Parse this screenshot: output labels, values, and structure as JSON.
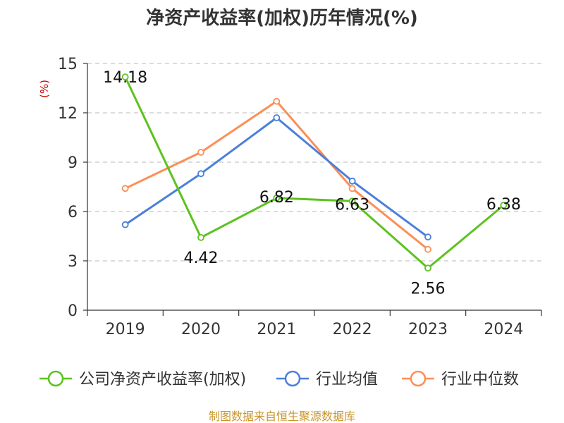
{
  "colors": {
    "company": "#5cc21f",
    "industry_avg": "#4c7fdc",
    "industry_median": "#fb8f57",
    "unit": "#cc0000",
    "source": "#c8962d",
    "grid": "#c8c8c8",
    "axis": "#333333"
  },
  "source_text": "制图数据来自恒生聚源数据库",
  "chart_data": {
    "type": "line",
    "title": "净资产收益率(加权)历年情况(%)",
    "ylabel": "(%)",
    "xlabel": "",
    "categories": [
      "2019",
      "2020",
      "2021",
      "2022",
      "2023",
      "2024"
    ],
    "ylim": [
      0,
      15
    ],
    "yticks": [
      0,
      3,
      6,
      9,
      12,
      15
    ],
    "grid": true,
    "legend_position": "bottom",
    "series": [
      {
        "name": "公司净资产收益率(加权)",
        "color_key": "company",
        "values": [
          14.18,
          4.42,
          6.82,
          6.63,
          2.56,
          6.38
        ],
        "labels": [
          "14.18",
          "4.42",
          "6.82",
          "6.63",
          "2.56",
          "6.38"
        ]
      },
      {
        "name": "行业均值",
        "color_key": "industry_avg",
        "values": [
          5.2,
          8.3,
          11.7,
          7.85,
          4.45,
          null
        ]
      },
      {
        "name": "行业中位数",
        "color_key": "industry_median",
        "values": [
          7.4,
          9.6,
          12.7,
          7.4,
          3.7,
          null
        ]
      }
    ]
  }
}
